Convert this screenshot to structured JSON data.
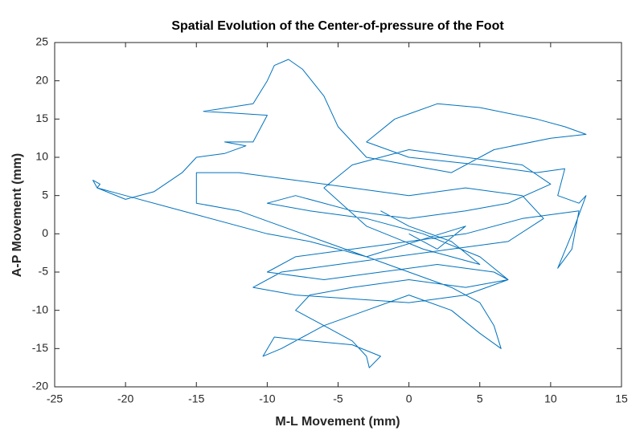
{
  "chart_data": {
    "type": "line",
    "title": "Spatial Evolution of the Center-of-pressure of the Foot",
    "xlabel": "M-L Movement (mm)",
    "ylabel": "A-P Movement (mm)",
    "xlim": [
      -25,
      15
    ],
    "xticks": [
      -25,
      -20,
      -15,
      -10,
      -5,
      0,
      5,
      10,
      15
    ],
    "ylim": [
      -20,
      25
    ],
    "yticks": [
      -20,
      -15,
      -10,
      -5,
      0,
      5,
      10,
      15,
      20,
      25
    ],
    "grid": false,
    "x": [
      0,
      2,
      4,
      -3,
      -7,
      -10,
      -15,
      -20,
      -22,
      -22.3,
      -21.8,
      -22,
      -20,
      -18,
      -16,
      -15,
      -13,
      -11.5,
      -13,
      -11,
      -10,
      -12.5,
      -14.5,
      -11,
      -10,
      -9.5,
      -8.5,
      -7.5,
      -6,
      -5,
      -3,
      0,
      3,
      6,
      10,
      12.5,
      11,
      9,
      5,
      2,
      -1,
      -3,
      0,
      5,
      9,
      11,
      10.5,
      12,
      12.5,
      11.5,
      10.5,
      11.5,
      12,
      8,
      4,
      0,
      -4,
      -8,
      -10,
      -6,
      -2,
      2,
      6,
      7,
      4,
      0,
      -4,
      -7,
      -8,
      -6,
      -4,
      -3,
      -2.8,
      -2,
      -4,
      -7,
      -9.5,
      -10.3,
      -9,
      -6,
      -3,
      0,
      3,
      5,
      6.5,
      6,
      5,
      3,
      0,
      -3,
      -6,
      -9,
      -12,
      -15,
      -15,
      -12,
      -8,
      -4,
      0,
      4,
      8,
      9.5,
      7,
      3,
      -1,
      -5,
      -9,
      -11,
      -8,
      -4,
      0,
      4,
      7,
      5,
      1,
      -3,
      -7,
      -10,
      -8,
      -4,
      0,
      4,
      7,
      10,
      8,
      4,
      0,
      -4,
      -6,
      -3,
      1,
      5,
      3,
      0,
      -2
    ],
    "series": [
      {
        "name": "A-P",
        "color": "#0072bd",
        "values": [
          0,
          -2,
          1,
          -3,
          -1,
          0,
          2.5,
          5,
          6,
          7,
          6.5,
          6,
          4.5,
          5.5,
          8,
          10,
          10.5,
          11.5,
          12,
          12,
          15.5,
          15.8,
          16,
          17,
          20,
          22,
          22.8,
          21.5,
          18,
          14,
          10,
          9,
          8,
          11,
          12.5,
          13,
          14,
          15,
          16.5,
          17,
          15,
          12,
          10,
          9,
          8,
          8.5,
          5,
          4,
          5,
          0,
          -4.5,
          -2,
          3,
          2,
          0,
          -1,
          -2,
          -3,
          -5,
          -6,
          -5,
          -4,
          -5,
          -6,
          -7,
          -6,
          -7,
          -8,
          -10,
          -12,
          -14,
          -16,
          -17.5,
          -16,
          -14.5,
          -14,
          -13.5,
          -16,
          -15,
          -12,
          -10,
          -8,
          -10,
          -13,
          -15,
          -12,
          -9,
          -7,
          -5,
          -3,
          -1,
          1,
          3,
          4,
          8,
          8,
          7,
          6,
          5,
          6,
          5,
          2,
          -1,
          -2,
          -3,
          -4,
          -5,
          -7,
          -8,
          -8.5,
          -9,
          -8,
          -6,
          -3,
          0,
          2,
          3,
          4,
          5,
          3,
          2,
          3,
          4,
          6.5,
          9,
          10,
          11,
          9,
          6,
          1,
          -2,
          -4,
          -1,
          1,
          3
        ]
      }
    ]
  }
}
